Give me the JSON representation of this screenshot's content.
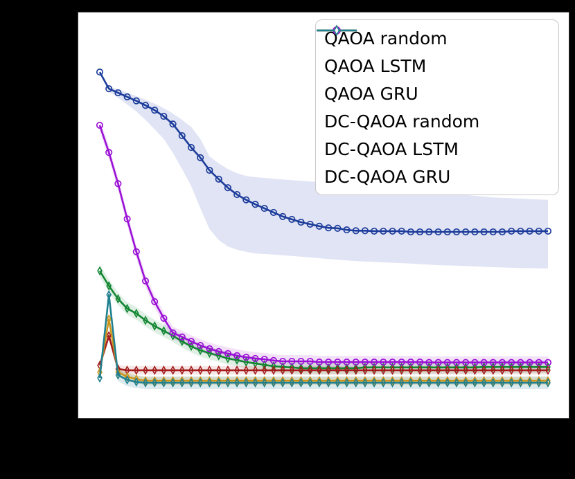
{
  "figure": {
    "background_color": "#000000",
    "plot_background_color": "#ffffff",
    "spine_color": "#3a3a3a",
    "tick_labels_visible": false
  },
  "legend": {
    "position": "upper right",
    "border_color": "#c8c8c8",
    "items": [
      {
        "label": "QAOA random",
        "color": "#1c3c9b",
        "marker": "circle"
      },
      {
        "label": "QAOA LSTM",
        "color": "#128632",
        "marker": "thin-diamond"
      },
      {
        "label": "QAOA GRU",
        "color": "#a31b1b",
        "marker": "thin-diamond"
      },
      {
        "label": "DC-QAOA random",
        "color": "#9a10d6",
        "marker": "circle"
      },
      {
        "label": "DC-QAOA LSTM",
        "color": "#cb941a",
        "marker": "thin-diamond"
      },
      {
        "label": "DC-QAOA GRU",
        "color": "#20808f",
        "marker": "thin-diamond"
      }
    ]
  },
  "chart_data": {
    "type": "line",
    "title": "",
    "xlabel": "",
    "ylabel": "",
    "grid": false,
    "legend_position": "upper right",
    "axis_tick_labels_visible": false,
    "y_units": "fraction of axis height (no tick labels visible in image)",
    "ylim": [
      0,
      1
    ],
    "x": [
      1,
      2,
      3,
      4,
      5,
      6,
      7,
      8,
      9,
      10,
      11,
      12,
      13,
      14,
      15,
      16,
      17,
      18,
      19,
      20,
      21,
      22,
      23,
      24,
      25,
      26,
      27,
      28,
      29,
      30,
      31,
      32,
      33,
      34,
      35,
      36,
      37,
      38,
      39,
      40,
      41,
      42,
      43,
      44,
      45,
      46,
      47,
      48,
      49,
      50
    ],
    "series": [
      {
        "name": "QAOA random",
        "color": "#1c3c9b",
        "marker": "circle",
        "band_color": "rgba(70,90,185,0.16)",
        "values": [
          0.853,
          0.812,
          0.802,
          0.792,
          0.782,
          0.771,
          0.759,
          0.744,
          0.725,
          0.696,
          0.667,
          0.642,
          0.611,
          0.589,
          0.568,
          0.551,
          0.538,
          0.527,
          0.517,
          0.507,
          0.497,
          0.49,
          0.483,
          0.478,
          0.473,
          0.469,
          0.468,
          0.464,
          0.462,
          0.462,
          0.461,
          0.461,
          0.461,
          0.461,
          0.459,
          0.459,
          0.459,
          0.459,
          0.459,
          0.459,
          0.459,
          0.459,
          0.459,
          0.459,
          0.459,
          0.461,
          0.461,
          0.461,
          0.461,
          0.461
        ],
        "band_points": [
          [
            2,
            0.817,
            0.805
          ],
          [
            3,
            0.811,
            0.79
          ],
          [
            4,
            0.802,
            0.773
          ],
          [
            5,
            0.794,
            0.756
          ],
          [
            6,
            0.785,
            0.735
          ],
          [
            7,
            0.775,
            0.712
          ],
          [
            8,
            0.764,
            0.688
          ],
          [
            9,
            0.751,
            0.654
          ],
          [
            10,
            0.735,
            0.614
          ],
          [
            11,
            0.718,
            0.572
          ],
          [
            12,
            0.688,
            0.517
          ],
          [
            13,
            0.645,
            0.466
          ],
          [
            14,
            0.628,
            0.439
          ],
          [
            15,
            0.614,
            0.423
          ],
          [
            16,
            0.604,
            0.415
          ],
          [
            17,
            0.597,
            0.41
          ],
          [
            18,
            0.594,
            0.406
          ],
          [
            20,
            0.59,
            0.403
          ],
          [
            23,
            0.585,
            0.398
          ],
          [
            26,
            0.58,
            0.392
          ],
          [
            29,
            0.573,
            0.387
          ],
          [
            32,
            0.567,
            0.384
          ],
          [
            35,
            0.56,
            0.381
          ],
          [
            38,
            0.555,
            0.377
          ],
          [
            41,
            0.55,
            0.375
          ],
          [
            44,
            0.544,
            0.372
          ],
          [
            47,
            0.541,
            0.37
          ],
          [
            50,
            0.538,
            0.369
          ]
        ]
      },
      {
        "name": "QAOA LSTM",
        "color": "#128632",
        "marker": "thin-diamond",
        "band_color": "rgba(30,140,60,0.14)",
        "band_halfwidth": 9,
        "values": [
          0.363,
          0.326,
          0.294,
          0.27,
          0.258,
          0.241,
          0.227,
          0.215,
          0.203,
          0.189,
          0.177,
          0.167,
          0.16,
          0.154,
          0.147,
          0.143,
          0.138,
          0.135,
          0.131,
          0.128,
          0.126,
          0.125,
          0.123,
          0.123,
          0.123,
          0.123,
          0.123,
          0.123,
          0.123,
          0.125,
          0.125,
          0.125,
          0.125,
          0.125,
          0.125,
          0.125,
          0.125,
          0.125,
          0.125,
          0.125,
          0.125,
          0.125,
          0.126,
          0.126,
          0.126,
          0.126,
          0.126,
          0.126,
          0.126,
          0.126
        ]
      },
      {
        "name": "QAOA GRU",
        "color": "#a31b1b",
        "marker": "thin-diamond",
        "band_color": "rgba(180,40,40,0.12)",
        "band_halfwidth": 6,
        "values": [
          0.13,
          0.203,
          0.121,
          0.118,
          0.118,
          0.118,
          0.118,
          0.118,
          0.118,
          0.118,
          0.118,
          0.118,
          0.118,
          0.118,
          0.118,
          0.118,
          0.118,
          0.118,
          0.118,
          0.118,
          0.118,
          0.118,
          0.118,
          0.118,
          0.118,
          0.118,
          0.118,
          0.118,
          0.118,
          0.118,
          0.118,
          0.118,
          0.118,
          0.118,
          0.118,
          0.118,
          0.118,
          0.118,
          0.118,
          0.118,
          0.118,
          0.118,
          0.118,
          0.118,
          0.118,
          0.118,
          0.118,
          0.118,
          0.118,
          0.118
        ]
      },
      {
        "name": "DC-QAOA random",
        "color": "#9a10d6",
        "marker": "circle",
        "band_color": "rgba(160,40,200,0.14)",
        "band_halfwidth": 9,
        "values": [
          0.722,
          0.655,
          0.578,
          0.491,
          0.41,
          0.338,
          0.287,
          0.246,
          0.21,
          0.2,
          0.189,
          0.179,
          0.171,
          0.164,
          0.159,
          0.154,
          0.15,
          0.147,
          0.145,
          0.142,
          0.14,
          0.14,
          0.14,
          0.14,
          0.138,
          0.138,
          0.138,
          0.138,
          0.138,
          0.138,
          0.138,
          0.138,
          0.138,
          0.138,
          0.138,
          0.138,
          0.137,
          0.137,
          0.137,
          0.137,
          0.137,
          0.137,
          0.137,
          0.137,
          0.137,
          0.137,
          0.137,
          0.137,
          0.137,
          0.137
        ]
      },
      {
        "name": "DC-QAOA LSTM",
        "color": "#cb941a",
        "marker": "thin-diamond",
        "band_color": "rgba(205,150,30,0.18)",
        "band_halfwidth": 6,
        "values": [
          0.113,
          0.244,
          0.113,
          0.102,
          0.096,
          0.092,
          0.092,
          0.092,
          0.092,
          0.092,
          0.092,
          0.092,
          0.092,
          0.092,
          0.092,
          0.092,
          0.092,
          0.092,
          0.092,
          0.092,
          0.092,
          0.092,
          0.092,
          0.092,
          0.092,
          0.092,
          0.092,
          0.092,
          0.092,
          0.092,
          0.092,
          0.092,
          0.092,
          0.092,
          0.092,
          0.092,
          0.092,
          0.092,
          0.092,
          0.092,
          0.092,
          0.092,
          0.092,
          0.092,
          0.092,
          0.092,
          0.092,
          0.092,
          0.092,
          0.092
        ]
      },
      {
        "name": "DC-QAOA GRU",
        "color": "#20808f",
        "marker": "thin-diamond",
        "band_color": "rgba(35,125,140,0.16)",
        "band_halfwidth": 9,
        "values": [
          0.099,
          0.304,
          0.106,
          0.094,
          0.089,
          0.087,
          0.087,
          0.087,
          0.087,
          0.087,
          0.087,
          0.087,
          0.087,
          0.087,
          0.087,
          0.087,
          0.087,
          0.087,
          0.087,
          0.087,
          0.087,
          0.087,
          0.087,
          0.087,
          0.087,
          0.087,
          0.087,
          0.087,
          0.087,
          0.087,
          0.087,
          0.087,
          0.087,
          0.087,
          0.087,
          0.087,
          0.087,
          0.087,
          0.087,
          0.087,
          0.087,
          0.087,
          0.087,
          0.087,
          0.087,
          0.087,
          0.087,
          0.087,
          0.087,
          0.087
        ]
      }
    ]
  }
}
